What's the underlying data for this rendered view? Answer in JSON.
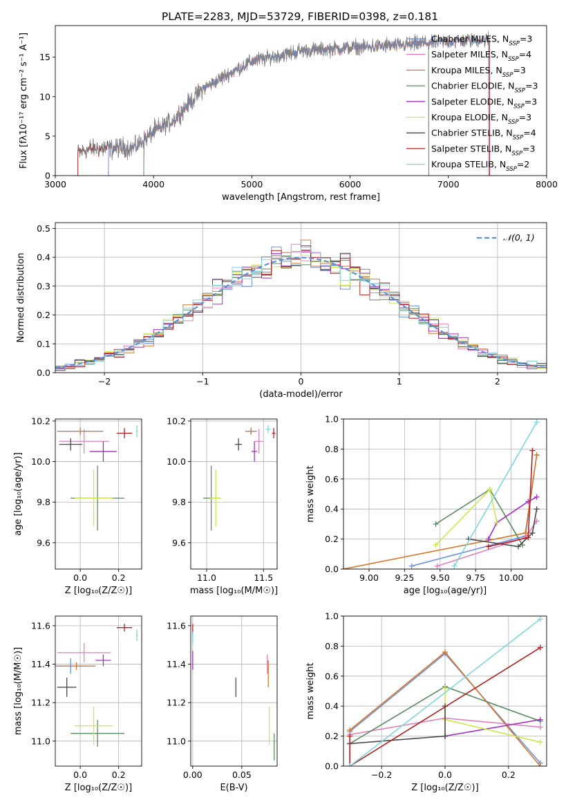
{
  "title": "PLATE=2283, MJD=53729, FIBERID=0398, z=0.181",
  "colors": {
    "Chabrier MILES": "#6a8fdd",
    "Salpeter MILES": "#e07fbd",
    "Kroupa MILES": "#d7762a",
    "Chabrier ELODIE": "#5a8a60",
    "Salpeter ELODIE": "#a02fbd",
    "Kroupa ELODIE": "#cde84d",
    "Chabrier STELIB": "#4a4a4a",
    "Salpeter STELIB": "#b01e1e",
    "Kroupa STELIB": "#7fd6dc",
    "data": "#808080",
    "gauss": "#5b8ed6"
  },
  "chart_data": [
    {
      "id": "spectrum",
      "type": "line",
      "xlabel": "wavelength [Angstrom, rest frame]",
      "ylabel": "Flux [fλ10⁻¹⁷ erg cm⁻² s⁻¹ A⁻¹]",
      "xlim": [
        3000,
        8000
      ],
      "ylim": [
        0,
        19
      ],
      "xticks": [
        3000,
        4000,
        5000,
        6000,
        7000,
        8000
      ],
      "yticks": [
        0,
        5,
        10,
        15
      ],
      "grid": false,
      "legend_position": "top-right",
      "continuum": {
        "x": [
          3230,
          3400,
          3600,
          3800,
          4000,
          4200,
          4500,
          5000,
          5500,
          6000,
          6500,
          7000,
          7400
        ],
        "y": [
          3.0,
          3.4,
          3.5,
          3.5,
          5.5,
          7.0,
          11.0,
          14.5,
          15.8,
          16.2,
          16.5,
          17.0,
          17.2
        ]
      },
      "series": [
        {
          "name": "Chabrier MILES",
          "nssp": 3,
          "range": [
            3540,
            7410
          ]
        },
        {
          "name": "Salpeter MILES",
          "nssp": 4,
          "range": [
            3540,
            7410
          ]
        },
        {
          "name": "Kroupa MILES",
          "nssp": 3,
          "range": [
            3540,
            7410
          ]
        },
        {
          "name": "Chabrier ELODIE",
          "nssp": 3,
          "range": [
            3900,
            6800
          ]
        },
        {
          "name": "Salpeter ELODIE",
          "nssp": 3,
          "range": [
            3900,
            6800
          ]
        },
        {
          "name": "Kroupa ELODIE",
          "nssp": 3,
          "range": [
            3900,
            6800
          ]
        },
        {
          "name": "Chabrier STELIB",
          "nssp": 4,
          "range": [
            3230,
            7420
          ]
        },
        {
          "name": "Salpeter STELIB",
          "nssp": 3,
          "range": [
            3230,
            7420
          ]
        },
        {
          "name": "Kroupa STELIB",
          "nssp": 2,
          "range": [
            3230,
            7420
          ]
        }
      ]
    },
    {
      "id": "residuals",
      "type": "line",
      "xlabel": "(data-model)/error",
      "ylabel": "Normed distribution",
      "xlim": [
        -2.5,
        2.5
      ],
      "ylim": [
        0,
        0.52
      ],
      "xticks": [
        -2,
        -1,
        0,
        1,
        2
      ],
      "yticks": [
        0.0,
        0.1,
        0.2,
        0.3,
        0.4,
        0.5
      ],
      "grid": true,
      "legend_position": "top-right",
      "legend": "𝒩(0, 1)",
      "bin_width": 0.1
    },
    {
      "id": "age_vs_Z",
      "type": "scatter",
      "xlabel": "Z [log₁₀(Z/Z☉)]",
      "ylabel": "age  [log₁₀(age/yr)]",
      "xlim": [
        -0.13,
        0.32
      ],
      "ylim": [
        9.47,
        10.21
      ],
      "xticks": [
        0.0,
        0.2
      ],
      "yticks": [
        9.6,
        9.8,
        10.0,
        10.2
      ],
      "points": [
        {
          "series": "Chabrier MILES",
          "x": 0.0,
          "y": 10.15,
          "xerr": 0.12,
          "yerr": 0.0
        },
        {
          "series": "Salpeter MILES",
          "x": 0.02,
          "y": 10.1,
          "xerr": 0.13,
          "yerr": 0.06
        },
        {
          "series": "Kroupa MILES",
          "x": 0.0,
          "y": 10.15,
          "xerr": 0.12,
          "yerr": 0.0
        },
        {
          "series": "Chabrier ELODIE",
          "x": 0.09,
          "y": 9.82,
          "xerr": 0.14,
          "yerr": 0.16
        },
        {
          "series": "Salpeter ELODIE",
          "x": 0.12,
          "y": 10.05,
          "xerr": 0.07,
          "yerr": 0.05
        },
        {
          "series": "Kroupa ELODIE",
          "x": 0.07,
          "y": 9.82,
          "xerr": 0.1,
          "yerr": 0.14
        },
        {
          "series": "Chabrier STELIB",
          "x": -0.05,
          "y": 10.085,
          "xerr": 0.06,
          "yerr": 0.03
        },
        {
          "series": "Salpeter STELIB",
          "x": 0.23,
          "y": 10.14,
          "xerr": 0.04,
          "yerr": 0.025
        },
        {
          "series": "Kroupa STELIB",
          "x": 0.295,
          "y": 10.15,
          "xerr": 0.005,
          "yerr": 0.03
        }
      ]
    },
    {
      "id": "age_vs_mass",
      "type": "scatter",
      "xlabel": "mass [log₁₀(M/M☉)]",
      "ylabel": "",
      "xlim": [
        10.86,
        11.62
      ],
      "ylim": [
        9.47,
        10.21
      ],
      "xticks": [
        11.0,
        11.5
      ],
      "yticks": [
        9.6,
        9.8,
        10.0,
        10.2
      ],
      "points": [
        {
          "series": "Chabrier MILES",
          "x": 11.39,
          "y": 10.15,
          "xerr": 0.05,
          "yerr": 0.0
        },
        {
          "series": "Salpeter MILES",
          "x": 11.46,
          "y": 10.1,
          "xerr": 0.04,
          "yerr": 0.06
        },
        {
          "series": "Kroupa MILES",
          "x": 11.39,
          "y": 10.15,
          "xerr": 0.05,
          "yerr": 0.0
        },
        {
          "series": "Chabrier ELODIE",
          "x": 11.04,
          "y": 9.82,
          "xerr": 0.07,
          "yerr": 0.16
        },
        {
          "series": "Salpeter ELODIE",
          "x": 11.42,
          "y": 10.05,
          "xerr": 0.025,
          "yerr": 0.05
        },
        {
          "series": "Kroupa ELODIE",
          "x": 11.08,
          "y": 9.82,
          "xerr": 0.05,
          "yerr": 0.14
        },
        {
          "series": "Chabrier STELIB",
          "x": 11.28,
          "y": 10.085,
          "xerr": 0.03,
          "yerr": 0.03
        },
        {
          "series": "Salpeter STELIB",
          "x": 11.59,
          "y": 10.14,
          "xerr": 0.015,
          "yerr": 0.025
        },
        {
          "series": "Kroupa STELIB",
          "x": 11.54,
          "y": 10.16,
          "xerr": 0.02,
          "yerr": 0.02
        }
      ]
    },
    {
      "id": "weight_vs_age",
      "type": "line",
      "xlabel": "age  [log₁₀(age/yr)]",
      "ylabel": "mass weight",
      "xlim": [
        8.82,
        10.25
      ],
      "ylim": [
        0,
        1
      ],
      "xticks": [
        9.0,
        9.25,
        9.5,
        9.75,
        10.0
      ],
      "yticks": [
        0.0,
        0.2,
        0.4,
        0.6,
        0.8,
        1.0
      ],
      "grid": true,
      "series": [
        {
          "name": "Chabrier MILES",
          "x": [
            9.3,
            10.1,
            10.18
          ],
          "y": [
            0.02,
            0.22,
            0.76
          ]
        },
        {
          "name": "Salpeter MILES",
          "x": [
            9.48,
            10.1,
            10.18
          ],
          "y": [
            0.02,
            0.21,
            0.32
          ]
        },
        {
          "name": "Kroupa MILES",
          "x": [
            8.82,
            10.1,
            10.18
          ],
          "y": [
            0.0,
            0.24,
            0.76
          ]
        },
        {
          "name": "Chabrier ELODIE",
          "x": [
            9.47,
            9.85,
            10.08
          ],
          "y": [
            0.3,
            0.53,
            0.16
          ]
        },
        {
          "name": "Salpeter ELODIE",
          "x": [
            9.84,
            9.9,
            10.12,
            10.18
          ],
          "y": [
            0.2,
            0.31,
            0.45,
            0.48
          ]
        },
        {
          "name": "Kroupa ELODIE",
          "x": [
            9.47,
            9.85,
            9.9
          ],
          "y": [
            0.16,
            0.53,
            0.31
          ]
        },
        {
          "name": "Chabrier STELIB",
          "x": [
            9.7,
            10.05,
            10.15,
            10.18
          ],
          "y": [
            0.2,
            0.15,
            0.24,
            0.4
          ]
        },
        {
          "name": "Salpeter STELIB",
          "x": [
            9.84,
            10.12,
            10.15
          ],
          "y": [
            0.15,
            0.21,
            0.79
          ]
        },
        {
          "name": "Kroupa STELIB",
          "x": [
            9.6,
            10.18
          ],
          "y": [
            0.02,
            0.98
          ]
        }
      ]
    },
    {
      "id": "mass_vs_Z",
      "type": "scatter",
      "xlabel": "Z [log₁₀(Z/Z☉)]",
      "ylabel": "mass [log₁₀(M/M☉)]",
      "xlim": [
        -0.13,
        0.32
      ],
      "ylim": [
        10.87,
        11.65
      ],
      "xticks": [
        0.0,
        0.2
      ],
      "yticks": [
        11.0,
        11.2,
        11.4,
        11.6
      ],
      "points": [
        {
          "series": "Chabrier MILES",
          "x": -0.05,
          "y": 11.39,
          "xerr": 0.08,
          "yerr": 0.04
        },
        {
          "series": "Salpeter MILES",
          "x": 0.02,
          "y": 11.46,
          "xerr": 0.14,
          "yerr": 0.05
        },
        {
          "series": "Kroupa MILES",
          "x": -0.02,
          "y": 11.39,
          "xerr": 0.1,
          "yerr": 0.02
        },
        {
          "series": "Chabrier ELODIE",
          "x": 0.09,
          "y": 11.04,
          "xerr": 0.14,
          "yerr": 0.07
        },
        {
          "series": "Salpeter ELODIE",
          "x": 0.12,
          "y": 11.42,
          "xerr": 0.04,
          "yerr": 0.03
        },
        {
          "series": "Kroupa ELODIE",
          "x": 0.07,
          "y": 11.08,
          "xerr": 0.1,
          "yerr": 0.1
        },
        {
          "series": "Chabrier STELIB",
          "x": -0.07,
          "y": 11.28,
          "xerr": 0.05,
          "yerr": 0.05
        },
        {
          "series": "Salpeter STELIB",
          "x": 0.23,
          "y": 11.59,
          "xerr": 0.04,
          "yerr": 0.02
        },
        {
          "series": "Kroupa STELIB",
          "x": 0.295,
          "y": 11.55,
          "xerr": 0.005,
          "yerr": 0.03
        }
      ]
    },
    {
      "id": "mass_vs_ebv",
      "type": "scatter",
      "xlabel": "E(B-V)",
      "ylabel": "",
      "xlim": [
        -0.002,
        0.086
      ],
      "ylim": [
        10.87,
        11.65
      ],
      "xticks": [
        0.0,
        0.05
      ],
      "yticks": [
        11.0,
        11.2,
        11.4,
        11.6
      ],
      "points": [
        {
          "series": "Chabrier MILES",
          "x": 0.0,
          "y": 11.55,
          "xerr": 0.0,
          "yerr": 0.03
        },
        {
          "series": "Salpeter MILES",
          "x": 0.076,
          "y": 11.4,
          "xerr": 0.0,
          "yerr": 0.05
        },
        {
          "series": "Kroupa MILES",
          "x": 0.077,
          "y": 11.35,
          "xerr": 0.0,
          "yerr": 0.07
        },
        {
          "series": "Chabrier ELODIE",
          "x": 0.083,
          "y": 10.97,
          "xerr": 0.0,
          "yerr": 0.07
        },
        {
          "series": "Salpeter ELODIE",
          "x": 0.0,
          "y": 11.42,
          "xerr": 0.0,
          "yerr": 0.05
        },
        {
          "series": "Kroupa ELODIE",
          "x": 0.078,
          "y": 11.08,
          "xerr": 0.0,
          "yerr": 0.1
        },
        {
          "series": "Chabrier STELIB",
          "x": 0.044,
          "y": 11.28,
          "xerr": 0.0,
          "yerr": 0.05
        },
        {
          "series": "Salpeter STELIB",
          "x": 0.0,
          "y": 11.59,
          "xerr": 0.0,
          "yerr": 0.02
        },
        {
          "series": "Kroupa STELIB",
          "x": 0.0,
          "y": 11.53,
          "xerr": 0.0,
          "yerr": 0.03
        }
      ]
    },
    {
      "id": "weight_vs_Z",
      "type": "line",
      "xlabel": "Z [log₁₀(Z/Z☉)]",
      "ylabel": "mass weight",
      "xlim": [
        -0.32,
        0.32
      ],
      "ylim": [
        0,
        1
      ],
      "xticks": [
        -0.2,
        0.0,
        0.2
      ],
      "yticks": [
        0.0,
        0.2,
        0.4,
        0.6,
        0.8,
        1.0
      ],
      "grid": true,
      "series": [
        {
          "name": "Chabrier MILES",
          "x": [
            -0.3,
            0.0,
            0.3
          ],
          "y": [
            0.23,
            0.75,
            0.02
          ]
        },
        {
          "name": "Salpeter MILES",
          "x": [
            -0.3,
            0.0,
            0.3
          ],
          "y": [
            0.21,
            0.32,
            0.26
          ]
        },
        {
          "name": "Kroupa MILES",
          "x": [
            -0.3,
            0.0,
            0.3
          ],
          "y": [
            0.24,
            0.76,
            0.0
          ]
        },
        {
          "name": "Chabrier ELODIE",
          "x": [
            -0.3,
            0.0,
            0.3
          ],
          "y": [
            0.15,
            0.53,
            0.3
          ]
        },
        {
          "name": "Salpeter ELODIE",
          "x": [
            0.0,
            0.0,
            0.3
          ],
          "y": [
            0.2,
            0.2,
            0.31
          ]
        },
        {
          "name": "Kroupa ELODIE",
          "x": [
            0.0,
            0.0,
            0.3
          ],
          "y": [
            0.52,
            0.31,
            0.16
          ]
        },
        {
          "name": "Chabrier STELIB",
          "x": [
            -0.3,
            0.0,
            0.0
          ],
          "y": [
            0.15,
            0.2,
            0.4
          ]
        },
        {
          "name": "Salpeter STELIB",
          "x": [
            -0.3,
            -0.3,
            0.3
          ],
          "y": [
            0.2,
            0.0,
            0.79
          ]
        },
        {
          "name": "Kroupa STELIB",
          "x": [
            -0.3,
            0.3
          ],
          "y": [
            0.0,
            0.98
          ]
        }
      ]
    }
  ]
}
